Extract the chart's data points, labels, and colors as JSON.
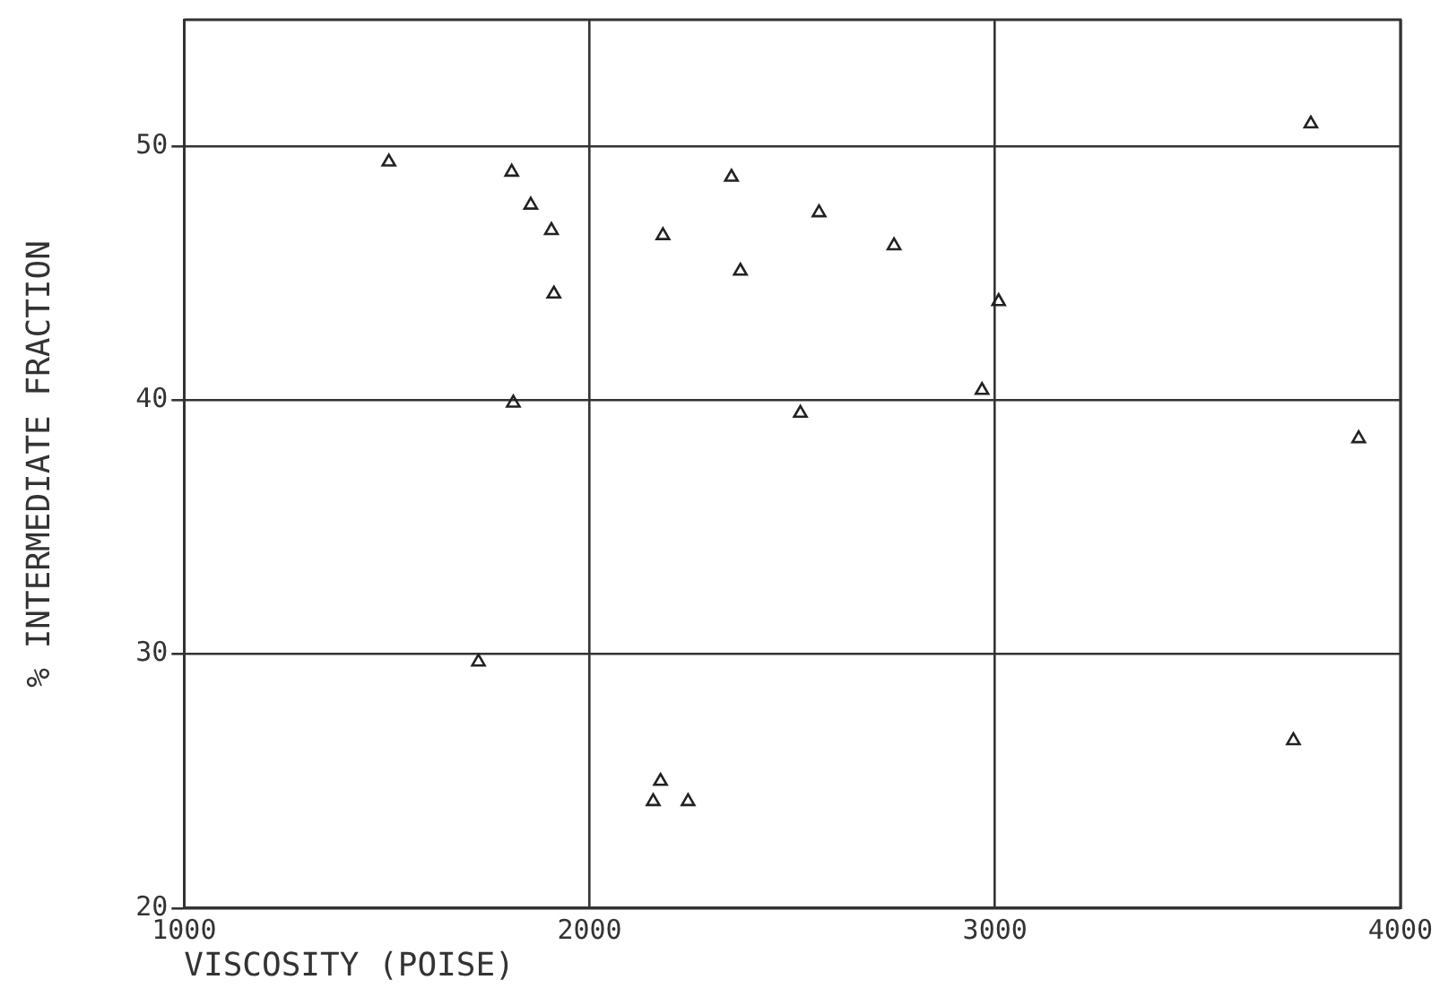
{
  "chart_data": {
    "type": "scatter",
    "xlabel": "VISCOSITY (POISE)",
    "ylabel": "% INTERMEDIATE FRACTION",
    "x": [
      1505,
      1808,
      1855,
      1906,
      1912,
      1812,
      1726,
      2181,
      2350,
      2372,
      2566,
      2751,
      3009,
      2968,
      2520,
      2175,
      2157,
      2243,
      3779,
      3897,
      3736
    ],
    "values": [
      49.4,
      49.0,
      47.7,
      46.7,
      44.2,
      39.9,
      29.7,
      46.5,
      48.8,
      45.1,
      47.4,
      46.1,
      43.9,
      40.4,
      39.5,
      25.0,
      24.2,
      24.2,
      50.9,
      38.5,
      26.6
    ],
    "color": "#222222",
    "marker": "triangle",
    "grid": true,
    "legend": false,
    "xlim": [
      1000,
      4000
    ],
    "xticks": [
      1000,
      2000,
      3000,
      4000
    ],
    "ylim": [
      20,
      55
    ],
    "yticks": [
      20,
      30,
      40,
      50
    ]
  }
}
